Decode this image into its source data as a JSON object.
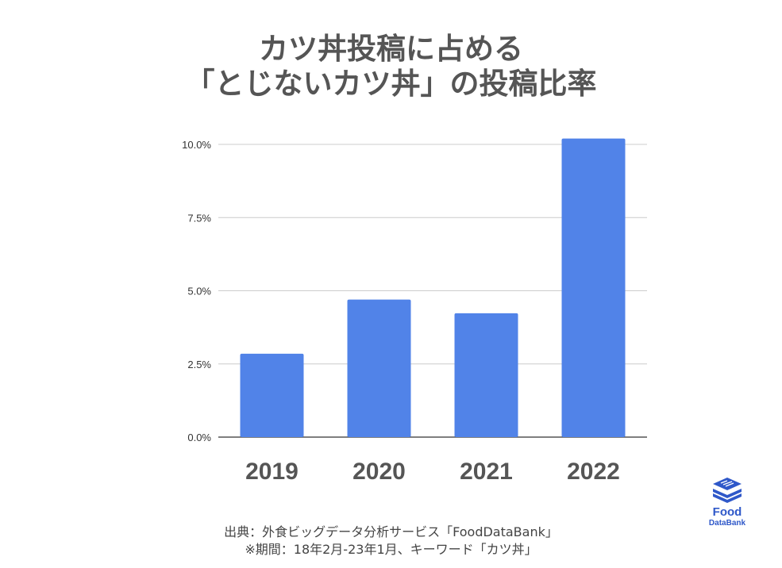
{
  "title": {
    "line1": "カツ丼投稿に占める",
    "line2": "「とじないカツ丼」の投稿比率"
  },
  "chart_data": {
    "type": "bar",
    "categories": [
      "2019",
      "2020",
      "2021",
      "2022"
    ],
    "values": [
      2.85,
      4.7,
      4.23,
      10.2
    ],
    "ylim": [
      0,
      10
    ],
    "yticks": [
      0,
      2.5,
      5,
      7.5,
      10
    ],
    "ytick_labels": [
      "0.0%",
      "2.5%",
      "5.0%",
      "7.5%",
      "10.0%"
    ],
    "xlabel": "",
    "ylabel": "",
    "bar_color": "#5183e8",
    "grid": true
  },
  "source": {
    "line1": "出典：外食ビッグデータ分析サービス「FoodDataBank」",
    "line2": "※期間：18年2月-23年1月、キーワード「カツ丼」"
  },
  "logo": {
    "word1": "Food",
    "word2": "DataBank",
    "icon": "food-databank-logo-icon",
    "color": "#2f58c9"
  }
}
